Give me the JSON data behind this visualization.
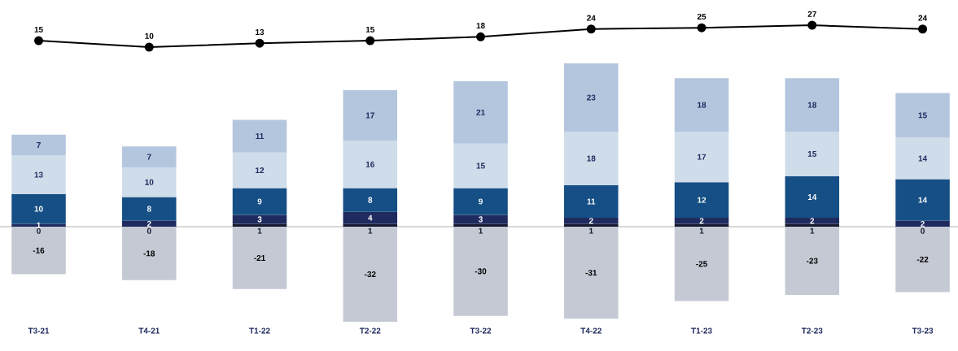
{
  "chart_data": [
    {
      "type": "bar",
      "stacked": true,
      "data_labels": true,
      "tick_labels": "x",
      "ylim": [
        -32,
        55
      ],
      "categories": [
        "T3-21",
        "T4-21",
        "T1-22",
        "T2-22",
        "T3-22",
        "T4-22",
        "T1-23",
        "T2-23",
        "T3-23"
      ],
      "series": [
        {
          "color": "#151a30",
          "values": [
            null,
            null,
            1,
            1,
            1,
            1,
            1,
            1,
            null
          ],
          "value_labels": [
            "0",
            "0",
            "1",
            "1",
            "1",
            "1",
            "1",
            "1",
            "0"
          ]
        },
        {
          "color": "#1f2a5e",
          "values": [
            1,
            2,
            3,
            4,
            3,
            2,
            2,
            2,
            2
          ]
        },
        {
          "color": "#154f85",
          "values": [
            10,
            8,
            9,
            8,
            9,
            11,
            12,
            14,
            14
          ]
        },
        {
          "color": "#cfdcea",
          "values": [
            13,
            10,
            12,
            16,
            15,
            18,
            17,
            15,
            14
          ]
        },
        {
          "color": "#b4c6de",
          "values": [
            7,
            7,
            11,
            17,
            21,
            23,
            18,
            18,
            15
          ]
        },
        {
          "color": "#c5c9d4",
          "values": [
            -16,
            -18,
            -21,
            -32,
            -30,
            -31,
            -25,
            -23,
            -22
          ]
        }
      ]
    },
    {
      "type": "line",
      "data_labels": true,
      "tick_labels": false,
      "marker": "circle",
      "categories": [
        null,
        null,
        null,
        null,
        null,
        null,
        null,
        null,
        null
      ],
      "series": [
        {
          "color": "#000000",
          "values": [
            15,
            10,
            13,
            15,
            18,
            24,
            25,
            27,
            24
          ]
        }
      ]
    }
  ]
}
